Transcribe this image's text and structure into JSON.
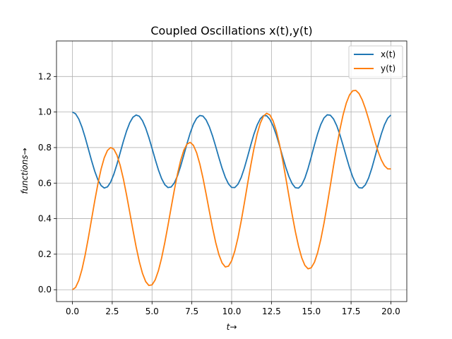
{
  "chart_data": {
    "type": "line",
    "title": "Coupled Oscillations x(t),y(t)",
    "xlabel": "t→",
    "ylabel": "functions→",
    "xlim": [
      -1.0,
      21.0
    ],
    "ylim": [
      -0.0667,
      1.4
    ],
    "xticks": [
      0.0,
      2.5,
      5.0,
      7.5,
      10.0,
      12.5,
      15.0,
      17.5,
      20.0
    ],
    "xtick_labels": [
      "0.0",
      "2.5",
      "5.0",
      "7.5",
      "10.0",
      "12.5",
      "15.0",
      "17.5",
      "20.0"
    ],
    "yticks": [
      0.0,
      0.2,
      0.4,
      0.6,
      0.8,
      1.0,
      1.2
    ],
    "ytick_labels": [
      "0.0",
      "0.2",
      "0.4",
      "0.6",
      "0.8",
      "1.0",
      "1.2"
    ],
    "grid": true,
    "legend": "top-right",
    "x": [
      0.0,
      0.2,
      0.4,
      0.6,
      0.8,
      1.0,
      1.2,
      1.4,
      1.6,
      1.8,
      2.0,
      2.2,
      2.4,
      2.6,
      2.8,
      3.0,
      3.2,
      3.4,
      3.6,
      3.8,
      4.0,
      4.2,
      4.4,
      4.6,
      4.8,
      5.0,
      5.2,
      5.4,
      5.6,
      5.8,
      6.0,
      6.2,
      6.4,
      6.6,
      6.8,
      7.0,
      7.2,
      7.4,
      7.6,
      7.8,
      8.0,
      8.2,
      8.4,
      8.6,
      8.8,
      9.0,
      9.2,
      9.4,
      9.6,
      9.8,
      10.0,
      10.2,
      10.4,
      10.6,
      10.8,
      11.0,
      11.2,
      11.4,
      11.6,
      11.8,
      12.0,
      12.2,
      12.4,
      12.6,
      12.8,
      13.0,
      13.2,
      13.4,
      13.6,
      13.8,
      14.0,
      14.2,
      14.4,
      14.6,
      14.8,
      15.0,
      15.2,
      15.4,
      15.6,
      15.8,
      16.0,
      16.2,
      16.4,
      16.6,
      16.8,
      17.0,
      17.2,
      17.4,
      17.6,
      17.8,
      18.0,
      18.2,
      18.4,
      18.6,
      18.8,
      19.0,
      19.2,
      19.4,
      19.6,
      19.8,
      20.0
    ],
    "series": [
      {
        "name": "x(t)",
        "color": "#1f77b4",
        "values": [
          1.0,
          0.9899,
          0.9606,
          0.9149,
          0.857,
          0.7924,
          0.7271,
          0.6674,
          0.6189,
          0.5862,
          0.5722,
          0.5789,
          0.6057,
          0.6498,
          0.7069,
          0.7708,
          0.8351,
          0.8932,
          0.9398,
          0.9707,
          0.9832,
          0.9765,
          0.9514,
          0.9102,
          0.8567,
          0.7958,
          0.7331,
          0.6745,
          0.6257,
          0.5914,
          0.5749,
          0.578,
          0.6008,
          0.6414,
          0.6963,
          0.759,
          0.8234,
          0.8829,
          0.9316,
          0.9652,
          0.9806,
          0.977,
          0.9549,
          0.9166,
          0.8653,
          0.8057,
          0.7432,
          0.6837,
          0.633,
          0.5958,
          0.5756,
          0.575,
          0.5942,
          0.6319,
          0.6855,
          0.7486,
          0.8143,
          0.8756,
          0.9264,
          0.9624,
          0.9803,
          0.9789,
          0.9588,
          0.9223,
          0.872,
          0.8128,
          0.7498,
          0.6889,
          0.6361,
          0.5966,
          0.5741,
          0.5717,
          0.5901,
          0.6282,
          0.6829,
          0.7476,
          0.8152,
          0.8781,
          0.9301,
          0.9666,
          0.9843,
          0.982,
          0.9608,
          0.923,
          0.8715,
          0.8116,
          0.7484,
          0.6877,
          0.6354,
          0.5963,
          0.5742,
          0.5721,
          0.5906,
          0.6284,
          0.6827,
          0.747,
          0.8143,
          0.8768,
          0.9286,
          0.9653,
          0.9833
        ]
      },
      {
        "name": "y(t)",
        "color": "#ff7f0e",
        "values": [
          0.0,
          0.0131,
          0.0519,
          0.1141,
          0.1959,
          0.2918,
          0.3953,
          0.4991,
          0.5958,
          0.6788,
          0.7428,
          0.784,
          0.8003,
          0.791,
          0.7567,
          0.6996,
          0.6235,
          0.5334,
          0.4355,
          0.3361,
          0.2417,
          0.1585,
          0.0919,
          0.0461,
          0.0241,
          0.0273,
          0.0555,
          0.1068,
          0.178,
          0.2645,
          0.3612,
          0.4622,
          0.5611,
          0.6517,
          0.7282,
          0.7856,
          0.8201,
          0.8292,
          0.8125,
          0.7711,
          0.708,
          0.6279,
          0.5368,
          0.4413,
          0.3486,
          0.2653,
          0.1976,
          0.1507,
          0.1283,
          0.1324,
          0.1631,
          0.2183,
          0.2944,
          0.3866,
          0.4889,
          0.5953,
          0.6992,
          0.7943,
          0.8751,
          0.9372,
          0.9772,
          0.993,
          0.984,
          0.9508,
          0.8952,
          0.8203,
          0.7303,
          0.6302,
          0.5258,
          0.4229,
          0.3274,
          0.2449,
          0.1801,
          0.1368,
          0.1176,
          0.1237,
          0.1547,
          0.2089,
          0.2834,
          0.3745,
          0.4775,
          0.5873,
          0.6982,
          0.8047,
          0.9017,
          0.9848,
          1.0503,
          1.0956,
          1.1195,
          1.1219,
          1.1041,
          1.0687,
          1.0192,
          0.9601,
          0.8966,
          0.8339,
          0.7771,
          0.7305,
          0.6974,
          0.6801,
          0.6799
        ]
      }
    ]
  }
}
